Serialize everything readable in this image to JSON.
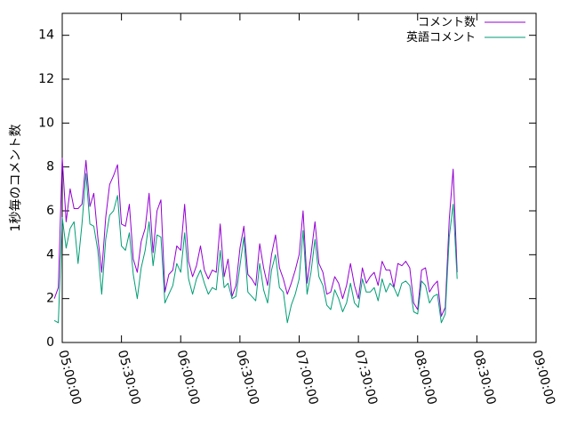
{
  "chart_data": {
    "type": "line",
    "ylabel": "1秒毎のコメント数",
    "ylim": [
      0,
      15
    ],
    "yticks": [
      0,
      2,
      4,
      6,
      8,
      10,
      12,
      14
    ],
    "xlim": [
      "05:00:00",
      "09:00:00"
    ],
    "xticks": [
      "05:00:00",
      "05:30:00",
      "06:00:00",
      "06:30:00",
      "07:00:00",
      "07:30:00",
      "08:00:00",
      "08:30:00",
      "09:00:00"
    ],
    "x_step_minutes": 2,
    "x_start": "04:56:00",
    "grid": false,
    "legend": "top-right",
    "colors": {
      "series1": "#9400d3",
      "series2": "#009e73",
      "axis": "#000000"
    },
    "series": [
      {
        "name": "コメント数",
        "color": "#9400d3",
        "values": [
          2.0,
          2.5,
          8.4,
          5.5,
          7.0,
          6.1,
          6.1,
          6.3,
          8.3,
          6.2,
          6.8,
          4.8,
          3.2,
          5.7,
          7.2,
          7.6,
          8.1,
          5.4,
          5.3,
          6.3,
          3.8,
          3.2,
          4.6,
          5.2,
          6.8,
          4.1,
          6.0,
          6.5,
          2.3,
          3.1,
          3.3,
          4.4,
          4.2,
          6.3,
          3.7,
          3.0,
          3.5,
          4.4,
          3.3,
          2.9,
          3.3,
          3.2,
          5.4,
          3.0,
          3.8,
          2.1,
          2.6,
          4.3,
          5.3,
          3.1,
          2.9,
          2.6,
          4.5,
          3.4,
          2.6,
          4.0,
          4.9,
          3.4,
          2.9,
          2.2,
          2.7,
          3.3,
          4.0,
          6.0,
          2.7,
          4.0,
          5.5,
          3.6,
          3.2,
          2.2,
          2.3,
          3.0,
          2.7,
          2.0,
          2.6,
          3.6,
          2.6,
          2.0,
          3.4,
          2.7,
          3.0,
          3.2,
          2.6,
          3.7,
          3.3,
          3.3,
          2.5,
          3.6,
          3.5,
          3.7,
          3.4,
          1.8,
          1.5,
          3.3,
          3.4,
          2.3,
          2.6,
          2.8,
          1.2,
          1.6,
          5.6,
          7.9,
          3.2
        ]
      },
      {
        "name": "英語コメント",
        "color": "#009e73",
        "values": [
          1.0,
          0.9,
          5.7,
          4.3,
          5.2,
          5.5,
          3.6,
          5.4,
          7.7,
          5.4,
          5.3,
          4.2,
          2.2,
          4.7,
          5.8,
          6.0,
          6.7,
          4.4,
          4.2,
          5.0,
          3.1,
          2.0,
          3.4,
          4.2,
          5.5,
          3.5,
          4.9,
          4.8,
          1.8,
          2.2,
          2.6,
          3.6,
          3.2,
          5.0,
          2.9,
          2.2,
          2.9,
          3.3,
          2.7,
          2.2,
          2.5,
          2.4,
          4.2,
          2.5,
          2.7,
          2.0,
          2.1,
          3.5,
          4.8,
          2.3,
          2.1,
          1.9,
          3.6,
          2.4,
          1.8,
          3.3,
          4.0,
          2.5,
          2.3,
          0.9,
          1.7,
          2.2,
          2.9,
          5.1,
          2.2,
          3.2,
          4.7,
          3.0,
          2.6,
          1.7,
          1.5,
          2.4,
          2.0,
          1.4,
          1.8,
          2.7,
          1.8,
          1.6,
          2.9,
          2.3,
          2.3,
          2.5,
          1.9,
          2.9,
          2.3,
          2.7,
          2.5,
          2.1,
          2.7,
          2.8,
          2.6,
          1.4,
          1.3,
          2.8,
          2.6,
          1.8,
          2.1,
          2.2,
          0.9,
          1.3,
          4.8,
          6.3,
          2.9
        ]
      }
    ]
  }
}
